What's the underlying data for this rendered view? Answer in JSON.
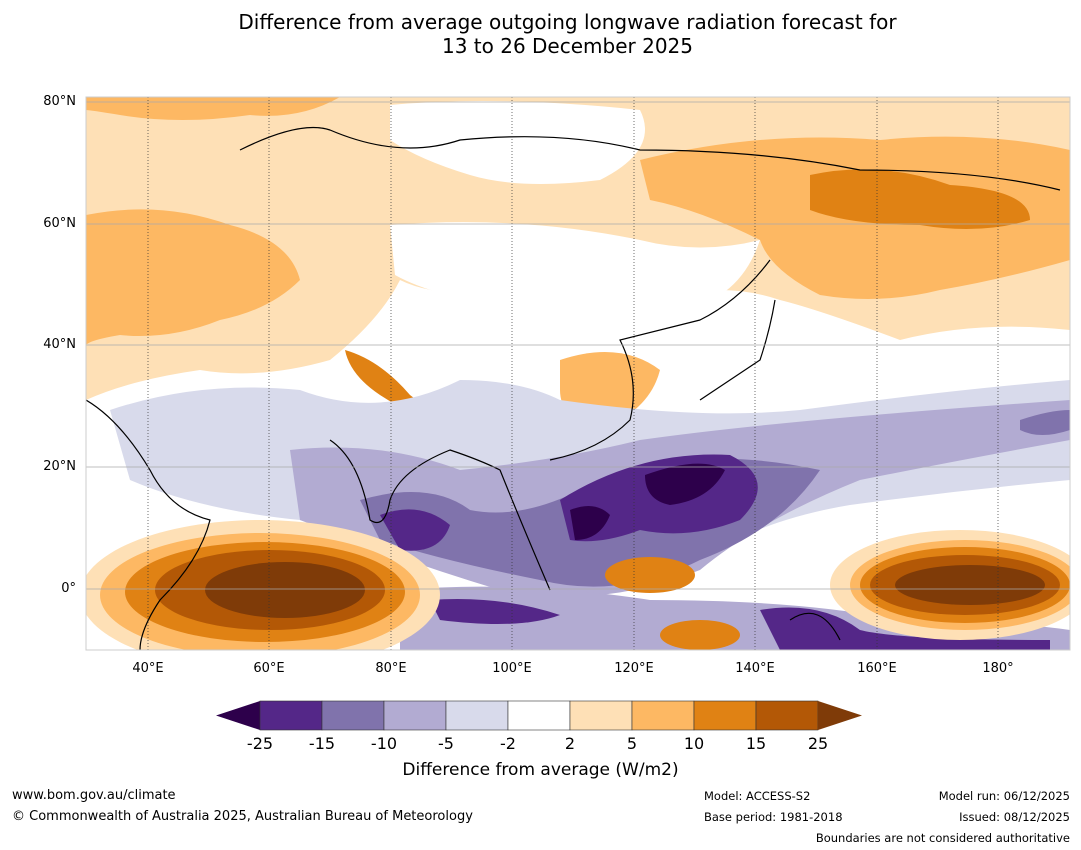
{
  "title_line1": "Difference from average outgoing longwave radiation forecast for",
  "title_line2": "13 to 26 December 2025",
  "lat_labels": [
    "80°N",
    "60°N",
    "40°N",
    "20°N",
    "0°"
  ],
  "lon_labels": [
    "40°E",
    "60°E",
    "80°E",
    "100°E",
    "120°E",
    "140°E",
    "160°E",
    "180°"
  ],
  "colorbar": {
    "tick_labels": [
      "-25",
      "-15",
      "-10",
      "-5",
      "-2",
      "2",
      "5",
      "10",
      "15",
      "25"
    ],
    "colors": [
      "#2d004b",
      "#542788",
      "#8073ac",
      "#b2abd2",
      "#d8daeb",
      "#ffffff",
      "#fee0b6",
      "#fdb863",
      "#e08214",
      "#b35806",
      "#7f3b08"
    ],
    "label": "Difference from average (W/m2)"
  },
  "footer": {
    "url": "www.bom.gov.au/climate",
    "copyright": "© Commonwealth of Australia 2025, Australian Bureau of Meteorology",
    "model": "Model: ACCESS-S2",
    "base_period": "Base period: 1981-2018",
    "model_run": "Model run: 06/12/2025",
    "issued": "Issued: 08/12/2025",
    "disclaimer": "Boundaries are not considered authoritative"
  }
}
